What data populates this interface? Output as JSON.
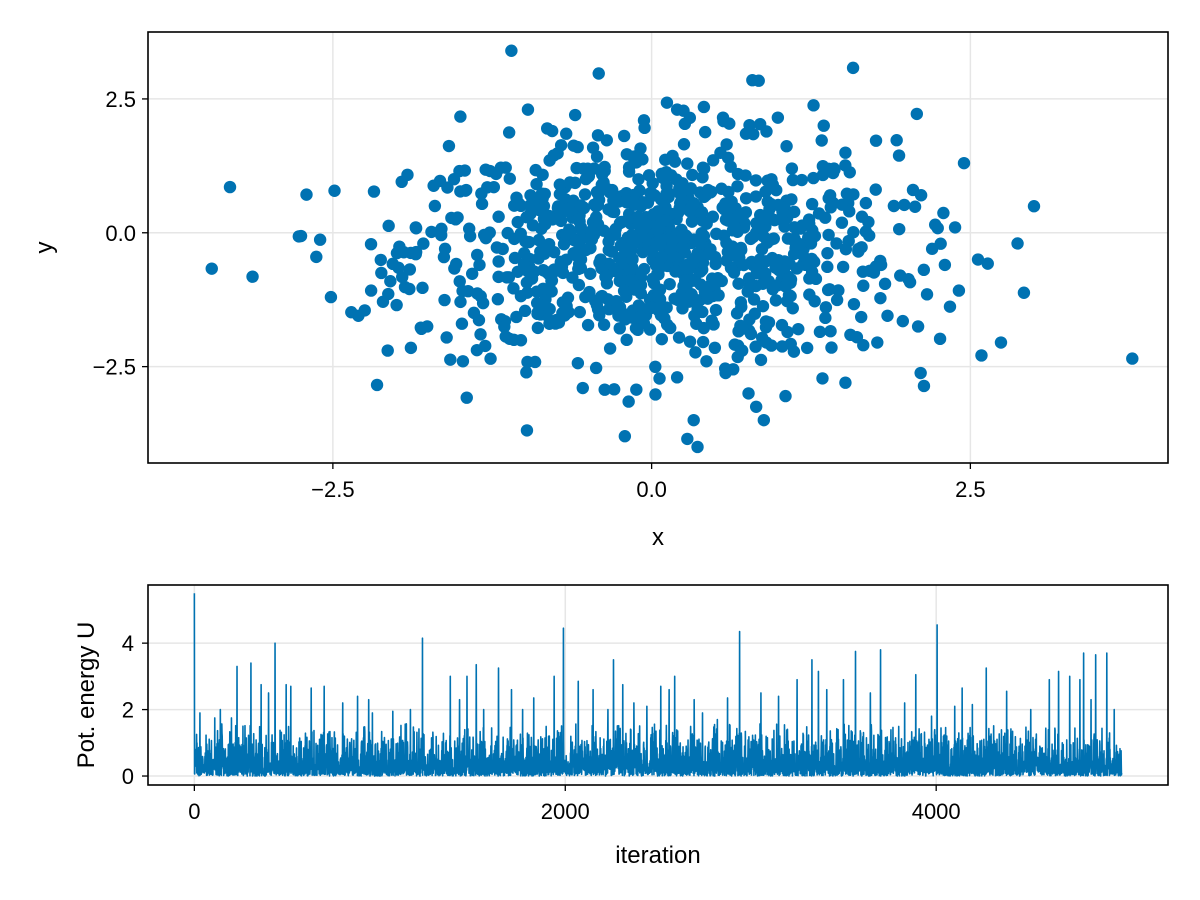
{
  "chart_data": [
    {
      "type": "scatter",
      "title": "",
      "xlabel": "x",
      "ylabel": "y",
      "xlim": [
        -3.95,
        4.05
      ],
      "ylim": [
        -4.3,
        3.75
      ],
      "xticks": [
        -2.5,
        0.0,
        2.5
      ],
      "xtick_labels": [
        "−2.5",
        "0.0",
        "2.5"
      ],
      "yticks": [
        -2.5,
        0.0,
        2.5
      ],
      "ytick_labels": [
        "−2.5",
        "0.0",
        "2.5"
      ],
      "grid": true,
      "legend": false,
      "color": "#0072b2",
      "series": [
        {
          "approx_n_points": 1000,
          "x": [
            -1.1,
            1.58,
            0.79,
            0.84,
            0.41,
            0.56,
            0.12,
            0.2,
            0.25,
            -0.97,
            0.99,
            -0.78,
            -0.67,
            -0.06,
            0.42,
            1.27,
            0.74,
            1.35,
            -1.5,
            1.76,
            2.08,
            -3.45,
            -3.13,
            -2.6,
            -2.63,
            -2.03,
            -1.85,
            -2.25,
            -2.3,
            -2.2,
            -2.12,
            -1.76,
            -2.07,
            -1.45,
            2.87,
            2.92,
            2.56,
            2.74,
            3.77,
            2.11,
            2.34,
            2.41,
            1.52,
            1.66,
            1.77,
            1.34,
            1.05,
            0.76,
            0.82,
            0.88,
            0.03,
            -0.12,
            -0.21,
            0.28,
            0.36,
            0.33,
            0.2,
            -1.48,
            -1.08,
            -0.54,
            0.43,
            0.71,
            0.64,
            0.58,
            0.9,
            1.22,
            1.32,
            1.61,
            1.85,
            2.16,
            1.97,
            2.09,
            1.8,
            0.38,
            0.05,
            -0.15,
            -0.58,
            -0.8,
            -1.22,
            -1.55,
            -1.7,
            -1.85,
            -1.9,
            -2.0,
            -1.62,
            -1.35,
            -1.2,
            -0.95,
            -0.72,
            -0.45,
            -0.3,
            -0.1,
            0.15,
            0.3,
            0.48,
            0.6,
            0.95,
            1.1,
            1.4,
            1.55,
            1.7,
            1.9,
            2.05,
            2.2,
            2.3,
            2.38,
            2.45,
            -0.52,
            -0.35,
            0.1,
            0.25,
            0.45,
            0.55,
            0.7,
            1.0,
            1.15,
            1.25,
            -0.9,
            -0.7,
            -0.4,
            -0.25,
            0.0,
            0.15,
            0.35,
            -1.3,
            -1.05,
            -0.85,
            -0.6,
            -0.2,
            0.05,
            0.65,
            0.85,
            1.05,
            1.45,
            1.65,
            1.95
          ],
          "y": [
            3.4,
            3.08,
            2.85,
            2.84,
            2.35,
            2.15,
            2.43,
            2.3,
            2.28,
            2.3,
            2.15,
            1.9,
            1.85,
            2.1,
            1.88,
            2.38,
            1.85,
            2.0,
            2.17,
            1.72,
            2.22,
            -0.67,
            -0.82,
            -0.13,
            -0.45,
            -0.58,
            -0.4,
            -1.45,
            -1.55,
            -1.08,
            -0.75,
            -1.75,
            -2.2,
            -3.08,
            -0.2,
            -1.12,
            -0.5,
            -2.05,
            -2.35,
            -2.62,
            -1.38,
            -1.08,
            -2.8,
            -2.1,
            -2.05,
            -2.72,
            -3.05,
            -3.0,
            -3.25,
            -3.5,
            -3.02,
            -2.93,
            -3.8,
            -3.85,
            -4.0,
            -3.5,
            -2.7,
            -2.4,
            -2.0,
            -2.9,
            -2.4,
            -2.2,
            -2.55,
            -2.62,
            -2.05,
            -2.15,
            -1.85,
            -1.95,
            -1.55,
            -1.15,
            -1.65,
            -1.75,
            -0.6,
            -0.2,
            0.4,
            -0.5,
            1.6,
            1.35,
            1.1,
            1.0,
            0.5,
            0.1,
            -1.05,
            -1.35,
            -0.3,
            -0.6,
            0.3,
            0.7,
            0.9,
            1.2,
            0.6,
            0.2,
            -0.1,
            0.8,
            0.3,
            1.4,
            0.9,
            1.2,
            0.7,
            0.4,
            0.2,
            0.5,
            0.8,
            -0.3,
            -0.6,
            0.1,
            1.3,
            -1.2,
            -0.8,
            -1.6,
            -1.0,
            -0.4,
            -0.9,
            -1.3,
            -0.7,
            -1.8,
            -0.2,
            -1.1,
            -1.5,
            -0.5,
            -0.9,
            -1.4,
            -0.3,
            -1.7,
            -0.1,
            0.2,
            -0.7,
            -0.4,
            0.6,
            -1.2,
            0.1,
            -0.5,
            -1.0,
            -0.2,
            0.3,
            -0.8
          ]
        }
      ]
    },
    {
      "type": "line",
      "title": "",
      "xlabel": "iteration",
      "ylabel": "Pot. energy U",
      "xlim": [
        -250,
        5250
      ],
      "ylim": [
        -0.27,
        5.75
      ],
      "xticks": [
        0,
        2000,
        4000
      ],
      "xtick_labels": [
        "0",
        "2000",
        "4000"
      ],
      "yticks": [
        0,
        2,
        4
      ],
      "ytick_labels": [
        "0",
        "2",
        "4"
      ],
      "grid": true,
      "legend": false,
      "color": "#0072b2",
      "series": [
        {
          "n_points": 5000,
          "x_range": [
            0,
            5000
          ],
          "x": [
            0,
            30,
            110,
            140,
            200,
            230,
            305,
            360,
            400,
            435,
            495,
            520,
            630,
            700,
            800,
            880,
            940,
            960,
            1070,
            1165,
            1230,
            1380,
            1430,
            1470,
            1520,
            1560,
            1640,
            1710,
            1770,
            1830,
            1940,
            1990,
            2070,
            2150,
            2230,
            2260,
            2310,
            2370,
            2440,
            2515,
            2560,
            2590,
            2695,
            2740,
            2820,
            2875,
            2940,
            3055,
            3150,
            3250,
            3330,
            3365,
            3410,
            3500,
            3565,
            3645,
            3700,
            3830,
            3890,
            3975,
            4005,
            4100,
            4140,
            4195,
            4270,
            4380,
            4510,
            4610,
            4660,
            4720,
            4775,
            4795,
            4835,
            4860,
            4920,
            4960
          ],
          "y": [
            5.5,
            1.9,
            1.75,
            2.0,
            1.75,
            3.3,
            3.4,
            2.75,
            2.5,
            4.0,
            2.75,
            2.7,
            2.65,
            2.7,
            2.2,
            2.4,
            2.3,
            1.9,
            1.95,
            2.0,
            4.15,
            3.0,
            2.3,
            3.0,
            3.35,
            2.0,
            3.25,
            2.6,
            2.0,
            2.35,
            3.0,
            4.45,
            2.85,
            2.6,
            2.0,
            3.5,
            2.75,
            2.2,
            2.1,
            2.7,
            2.6,
            3.0,
            2.3,
            1.9,
            1.7,
            2.35,
            4.35,
            2.5,
            2.4,
            2.9,
            3.5,
            3.15,
            2.6,
            2.9,
            3.75,
            2.5,
            3.8,
            2.2,
            3.05,
            1.8,
            4.55,
            2.1,
            2.65,
            2.15,
            3.25,
            2.55,
            2.0,
            2.9,
            3.15,
            3.0,
            2.9,
            3.7,
            2.3,
            3.65,
            3.7,
            2.0
          ],
          "baseline_band": [
            0.1,
            1.0
          ]
        }
      ]
    }
  ]
}
